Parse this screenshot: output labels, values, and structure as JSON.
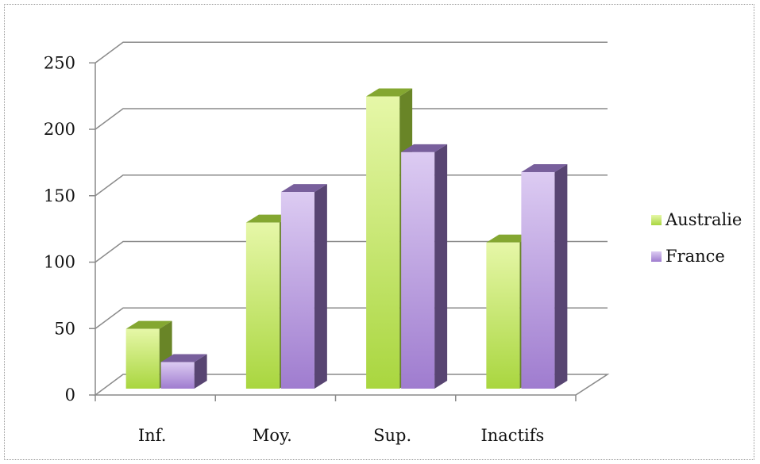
{
  "chart_data": {
    "type": "bar",
    "title": "",
    "xlabel": "",
    "ylabel": "",
    "categories": [
      "Inf.",
      "Moy.",
      "Sup.",
      "Inactifs"
    ],
    "series": [
      {
        "name": "Australie",
        "values": [
          45,
          125,
          220,
          110
        ],
        "color": "#a9d63f"
      },
      {
        "name": "France",
        "values": [
          20,
          148,
          178,
          163
        ],
        "color": "#a07ed0"
      }
    ],
    "ylim": [
      0,
      250
    ],
    "yticks": [
      0,
      50,
      100,
      150,
      200,
      250
    ],
    "grid": true,
    "legend_position": "right",
    "style": "3d-clustered-column"
  }
}
